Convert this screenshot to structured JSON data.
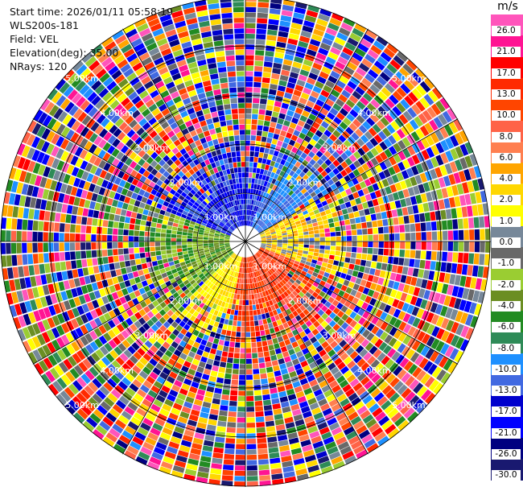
{
  "info": {
    "start_time": "Start time: 2026/01/11 05:58:19",
    "instrument": "WLS200s-181",
    "field": "Field: VEL",
    "elevation": "Elevation(deg): 35.00",
    "nrays": "NRays: 120"
  },
  "colorbar": {
    "unit": "m/s",
    "ticks": [
      "26.0",
      "21.0",
      "17.0",
      "13.0",
      "10.0",
      "8.0",
      "6.0",
      "4.0",
      "2.0",
      "1.0",
      "0.0",
      "-1.0",
      "-2.0",
      "-4.0",
      "-6.0",
      "-8.0",
      "-10.0",
      "-13.0",
      "-17.0",
      "-21.0",
      "-26.0",
      "-30.0"
    ],
    "colors": [
      "#ff55bb",
      "#ff1493",
      "#ff0000",
      "#ff2a00",
      "#ff4500",
      "#ff6347",
      "#ff7f50",
      "#ffa500",
      "#ffd700",
      "#ffff00",
      "#778899",
      "#696969",
      "#9acd32",
      "#6b8e23",
      "#228b22",
      "#2e8b57",
      "#1e90ff",
      "#4169e1",
      "#0000cd",
      "#0000ff",
      "#000080",
      "#191970"
    ]
  },
  "range_rings": {
    "labels": [
      "1.00km",
      "2.00km",
      "3.00km",
      "4.00km",
      "5.00km"
    ]
  },
  "ppi": {
    "max_range_km": 5.0,
    "rays": 120
  }
}
